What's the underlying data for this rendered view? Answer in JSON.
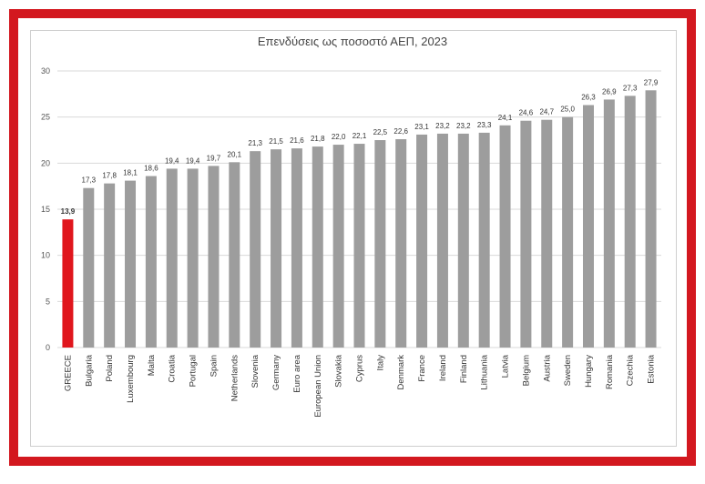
{
  "chart_data": {
    "type": "bar",
    "title": "Επενδύσεις ως ποσοστό ΑΕΠ, 2023",
    "xlabel": "",
    "ylabel": "",
    "ylim": [
      0,
      30
    ],
    "yticks": [
      0,
      5,
      10,
      15,
      20,
      25,
      30
    ],
    "grid": true,
    "categories": [
      "GREECE",
      "Bulgaria",
      "Poland",
      "Luxembourg",
      "Malta",
      "Croatia",
      "Portugal",
      "Spain",
      "Netherlands",
      "Slovenia",
      "Germany",
      "Euro area",
      "European Union",
      "Slovakia",
      "Cyprus",
      "Italy",
      "Denmark",
      "France",
      "Ireland",
      "Finland",
      "Lithuania",
      "Latvia",
      "Belgium",
      "Austria",
      "Sweden",
      "Hungary",
      "Romania",
      "Czechia",
      "Estonia"
    ],
    "values": [
      13.9,
      17.3,
      17.8,
      18.1,
      18.6,
      19.4,
      19.4,
      19.7,
      20.1,
      21.3,
      21.5,
      21.6,
      21.8,
      22.0,
      22.1,
      22.5,
      22.6,
      23.1,
      23.2,
      23.2,
      23.3,
      24.1,
      24.6,
      24.7,
      25.0,
      26.3,
      26.9,
      27.3,
      27.9
    ],
    "value_labels": [
      "13,9",
      "17,3",
      "17,8",
      "18,1",
      "18,6",
      "19,4",
      "19,4",
      "19,7",
      "20,1",
      "21,3",
      "21,5",
      "21,6",
      "21,8",
      "22,0",
      "22,1",
      "22,5",
      "22,6",
      "23,1",
      "23,2",
      "23,2",
      "23,3",
      "24,1",
      "24,6",
      "24,7",
      "25,0",
      "26,3",
      "26,9",
      "27,3",
      "27,9"
    ],
    "highlight_index": 0,
    "colors": {
      "bar": "#9d9d9d",
      "highlight": "#e0161d",
      "frame": "#d3181f",
      "grid": "#d9d9d9"
    }
  }
}
